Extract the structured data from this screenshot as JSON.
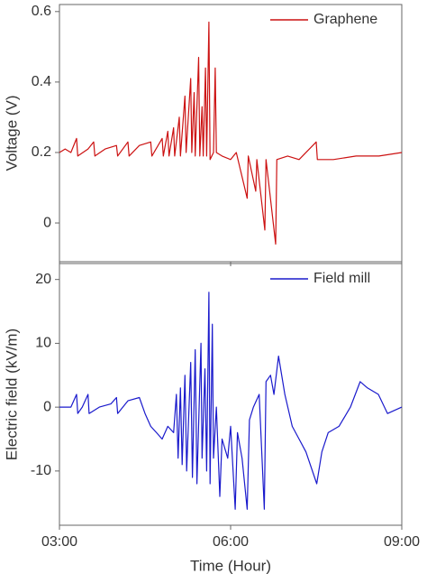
{
  "chart_data": [
    {
      "type": "line",
      "ylabel": "Voltage (V)",
      "legend": "upper right",
      "x": [
        3.0,
        3.1,
        3.2,
        3.3,
        3.32,
        3.5,
        3.6,
        3.62,
        3.8,
        4.0,
        4.02,
        4.2,
        4.22,
        4.4,
        4.6,
        4.62,
        4.8,
        4.82,
        4.9,
        4.92,
        5.0,
        5.02,
        5.1,
        5.12,
        5.2,
        5.22,
        5.3,
        5.32,
        5.36,
        5.38,
        5.44,
        5.46,
        5.5,
        5.52,
        5.56,
        5.58,
        5.62,
        5.64,
        5.7,
        5.73,
        5.75,
        5.85,
        6.0,
        6.1,
        6.29,
        6.31,
        6.44,
        6.46,
        6.6,
        6.62,
        6.79,
        6.81,
        7.0,
        7.2,
        7.5,
        7.52,
        7.8,
        8.2,
        8.6,
        9.0
      ],
      "series": [
        {
          "name": "Graphene",
          "color": "#cc1111",
          "values": [
            0.2,
            0.21,
            0.2,
            0.24,
            0.19,
            0.21,
            0.23,
            0.19,
            0.21,
            0.22,
            0.19,
            0.23,
            0.19,
            0.22,
            0.23,
            0.19,
            0.24,
            0.19,
            0.26,
            0.19,
            0.27,
            0.19,
            0.3,
            0.19,
            0.36,
            0.2,
            0.41,
            0.2,
            0.37,
            0.19,
            0.47,
            0.19,
            0.33,
            0.19,
            0.44,
            0.19,
            0.57,
            0.18,
            0.2,
            0.44,
            0.2,
            0.19,
            0.18,
            0.2,
            0.07,
            0.19,
            0.09,
            0.18,
            -0.02,
            0.18,
            -0.06,
            0.18,
            0.19,
            0.18,
            0.23,
            0.18,
            0.18,
            0.19,
            0.19,
            0.2
          ]
        }
      ],
      "xlim": [
        3,
        9
      ],
      "xticks": [
        3,
        6,
        9
      ],
      "ylim": [
        -0.11,
        0.62
      ],
      "yticks": [
        0,
        0.2,
        0.4,
        0.6
      ]
    },
    {
      "type": "line",
      "ylabel": "Electric field (kV/m)",
      "xlabel": "Time (Hour)",
      "legend": "upper right",
      "x": [
        3.0,
        3.2,
        3.3,
        3.32,
        3.4,
        3.5,
        3.52,
        3.7,
        3.9,
        4.0,
        4.02,
        4.2,
        4.4,
        4.5,
        4.6,
        4.7,
        4.8,
        4.9,
        5.0,
        5.05,
        5.08,
        5.12,
        5.15,
        5.2,
        5.23,
        5.3,
        5.33,
        5.38,
        5.41,
        5.48,
        5.5,
        5.55,
        5.58,
        5.62,
        5.64,
        5.68,
        5.7,
        5.75,
        5.81,
        5.85,
        5.95,
        6.0,
        6.08,
        6.12,
        6.2,
        6.29,
        6.33,
        6.4,
        6.5,
        6.59,
        6.62,
        6.7,
        6.76,
        6.84,
        6.95,
        7.08,
        7.2,
        7.32,
        7.51,
        7.6,
        7.71,
        7.9,
        8.1,
        8.27,
        8.4,
        8.59,
        8.75,
        9.0
      ],
      "series": [
        {
          "name": "Field mill",
          "color": "#1a1acc",
          "values": [
            0,
            0,
            2,
            -1,
            0,
            2,
            -1,
            0,
            0.5,
            1.5,
            -1,
            1,
            1.5,
            -1,
            -3,
            -4,
            -5,
            -3,
            -4,
            2,
            -8,
            3,
            -9,
            5,
            -10,
            7,
            -11,
            9,
            -12,
            10,
            -8,
            6,
            -10,
            18,
            -12,
            13,
            -8,
            0,
            -14,
            -5,
            -8,
            -3,
            -16,
            -4,
            -8,
            -16,
            -2,
            0,
            2,
            -16,
            4,
            5,
            2,
            8,
            2,
            -3,
            -5,
            -7,
            -12,
            -7,
            -4,
            -3,
            0,
            4,
            3,
            2,
            -1,
            0
          ]
        }
      ],
      "xlim": [
        3,
        9
      ],
      "xticks": [
        {
          "value": 3,
          "label": "03:00"
        },
        {
          "value": 6,
          "label": "06:00"
        },
        {
          "value": 9,
          "label": "09:00"
        }
      ],
      "ylim": [
        -18.5,
        22.5
      ],
      "yticks": [
        -10,
        0,
        10,
        20
      ]
    }
  ]
}
